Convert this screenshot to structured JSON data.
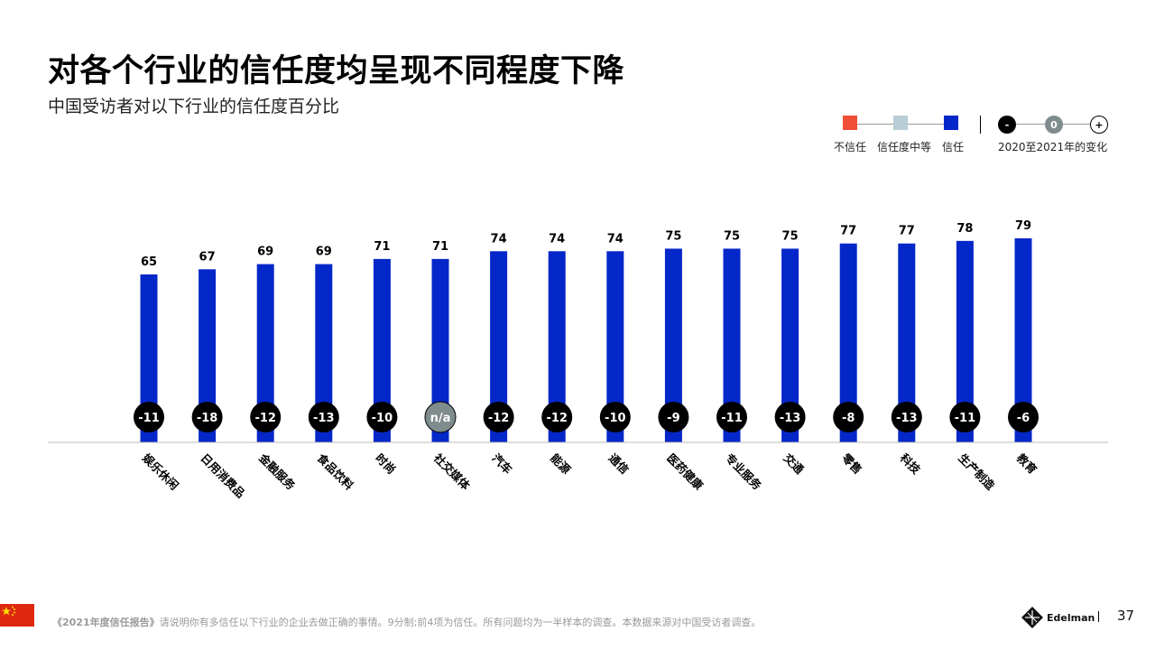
{
  "header": {
    "title": "对各个行业的信任度均呈现不同程度下降",
    "subtitle": "中国受访者对以下行业的信任度百分比"
  },
  "legend": {
    "items": [
      {
        "label": "不信任",
        "color": "#f04e37"
      },
      {
        "label": "信任度中等",
        "color": "#b8cdd6"
      },
      {
        "label": "信任",
        "color": "#0427c9"
      }
    ],
    "change_label": "2020至2021年的变化",
    "change_symbols": [
      "-",
      "0",
      "+"
    ]
  },
  "chart_data": {
    "type": "bar",
    "categories": [
      "娱乐休闲",
      "日用消费品",
      "金融服务",
      "食品饮料",
      "时尚",
      "社交媒体",
      "汽车",
      "能源",
      "通信",
      "医药健康",
      "专业服务",
      "交通",
      "零售",
      "科技",
      "生产制造",
      "教育"
    ],
    "values": [
      65,
      67,
      69,
      69,
      71,
      71,
      74,
      74,
      74,
      75,
      75,
      75,
      77,
      77,
      78,
      79
    ],
    "changes": [
      "-11",
      "-18",
      "-12",
      "-13",
      "-10",
      "n/a",
      "-12",
      "-12",
      "-10",
      "-9",
      "-11",
      "-13",
      "-8",
      "-13",
      "-11",
      "-6"
    ],
    "series": [
      {
        "name": "信任",
        "values": [
          65,
          67,
          69,
          69,
          71,
          71,
          74,
          74,
          74,
          75,
          75,
          75,
          77,
          77,
          78,
          79
        ]
      }
    ],
    "ylim": [
      0,
      100
    ],
    "grid": false,
    "bar_color": "#0427c9",
    "change_color": "#000000",
    "na_color": "#7f8c8d"
  },
  "footer": {
    "source_title": "《2021年度信任报告》",
    "source_text": "请说明你有多信任以下行业的企业去做正确的事情。9分制;前4项为信任。所有问题均为一半样本的调查。本数据来源对中国受访者调查。",
    "brand": "Edelman",
    "page_number": "37"
  }
}
